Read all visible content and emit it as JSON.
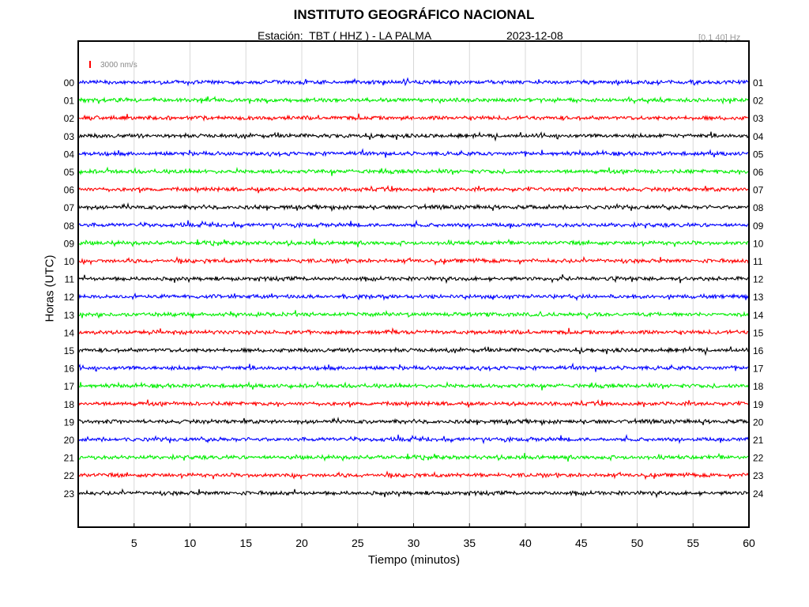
{
  "header": {
    "title": "INSTITUTO GEOGRÁFICO NACIONAL",
    "station": "Estación:  TBT ( HHZ ) - LA PALMA",
    "date": "2023-12-08",
    "filter": "[0.1 40] Hz"
  },
  "chart_data": {
    "type": "line",
    "title": "INSTITUTO GEOGRÁFICO NACIONAL",
    "xlabel": "Tiempo (minutos)",
    "ylabel": "Horas (UTC)",
    "xlim": [
      0,
      60
    ],
    "x_ticks": [
      "5",
      "10",
      "15",
      "20",
      "25",
      "30",
      "35",
      "40",
      "45",
      "50",
      "55",
      "60"
    ],
    "left_labels": [
      "00",
      "01",
      "02",
      "03",
      "04",
      "05",
      "06",
      "07",
      "08",
      "09",
      "10",
      "11",
      "12",
      "13",
      "14",
      "15",
      "16",
      "17",
      "18",
      "19",
      "20",
      "21",
      "22",
      "23"
    ],
    "right_labels": [
      "01",
      "02",
      "03",
      "04",
      "05",
      "06",
      "07",
      "08",
      "09",
      "10",
      "11",
      "12",
      "13",
      "14",
      "15",
      "16",
      "17",
      "18",
      "19",
      "20",
      "21",
      "22",
      "23",
      "24"
    ],
    "scale_label": "3000 nm/s",
    "colors": [
      "#0000ff",
      "#00ee00",
      "#ff0000",
      "#000000"
    ],
    "grid": true
  }
}
